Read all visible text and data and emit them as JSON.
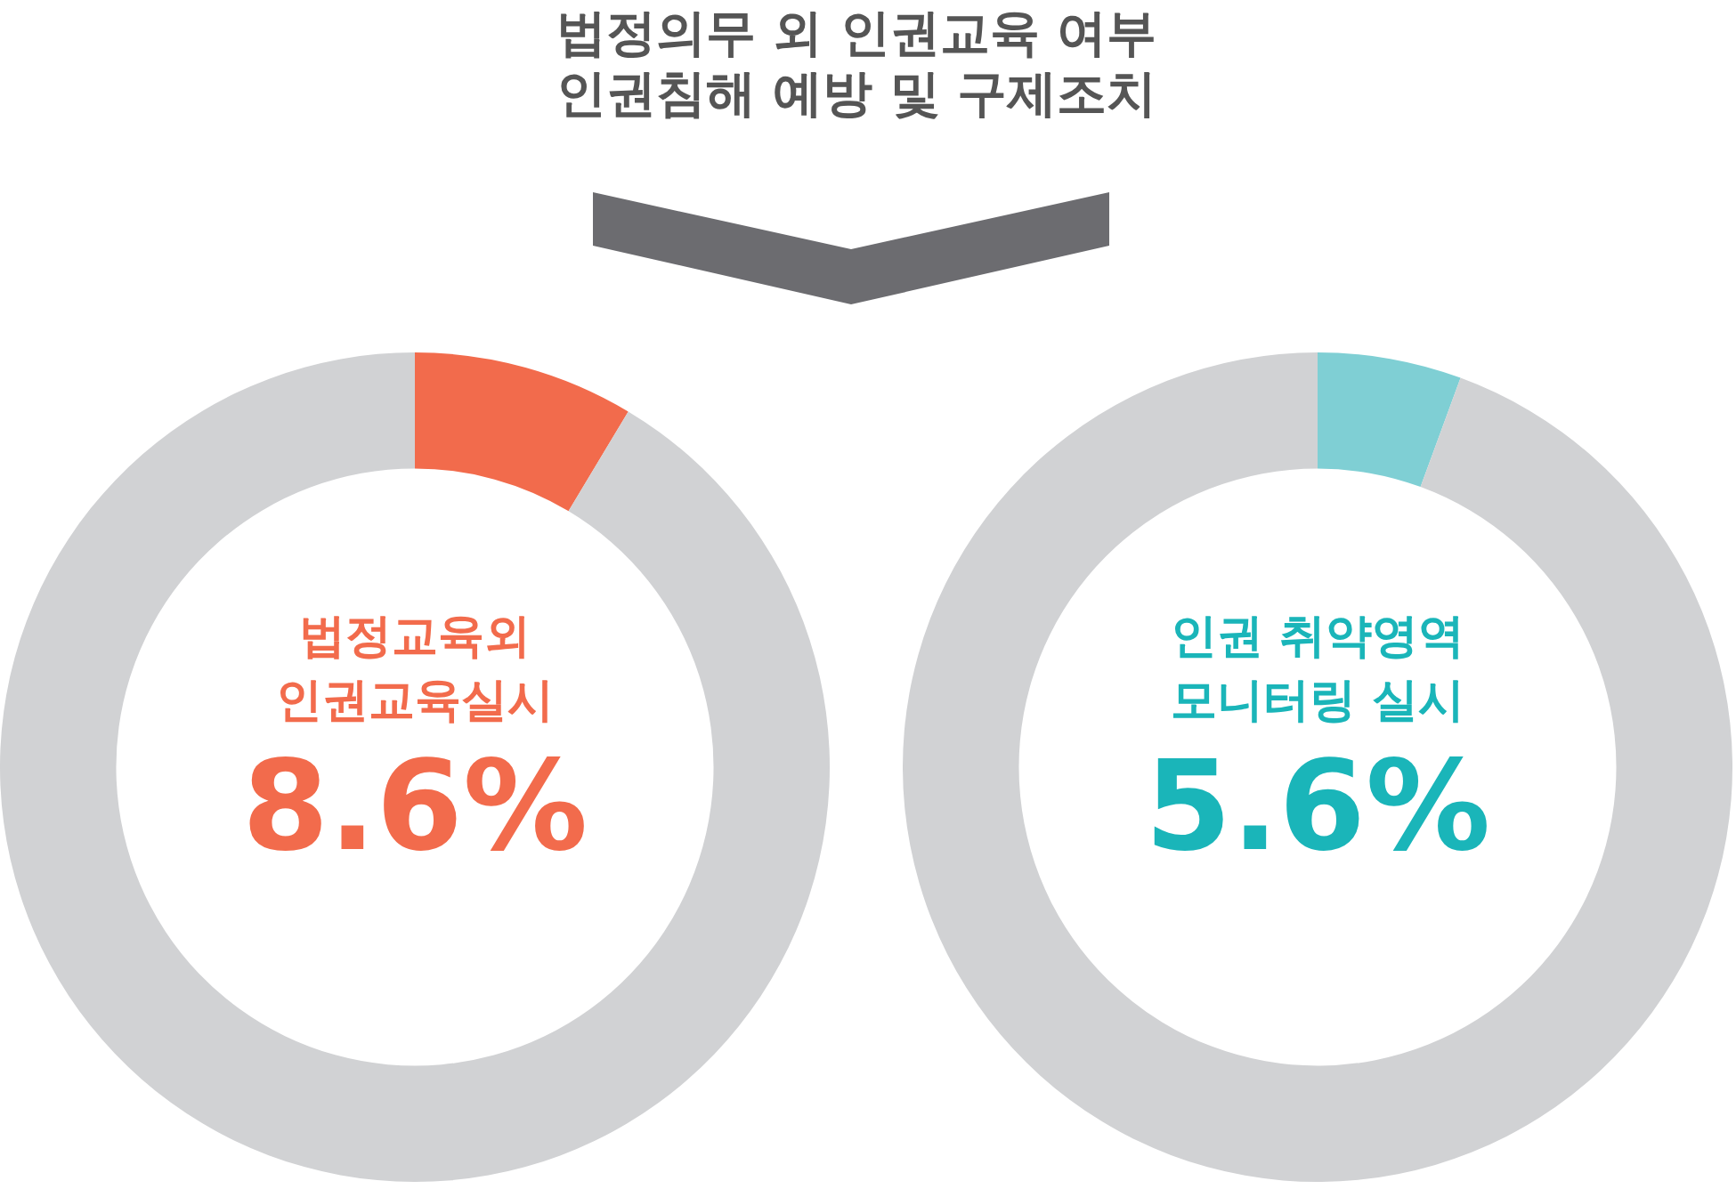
{
  "chart_data": [
    {
      "type": "other",
      "title": "법정의무 외 인권교육 여부\n인권침해 예방 및 구제조치"
    },
    {
      "type": "donut",
      "categories": [
        "법정교육외\n인권교육실시",
        null
      ],
      "values": [
        8.6,
        91.4
      ],
      "colors": [
        "#f26b4c",
        "#d1d2d4"
      ],
      "value_labels": [
        "8.6%",
        null
      ],
      "legend": false
    },
    {
      "type": "donut",
      "categories": [
        "인권 취약영역\n모니터링 실시",
        null
      ],
      "values": [
        5.6,
        94.4
      ],
      "colors": [
        "#7fcfd4",
        "#d1d2d4"
      ],
      "value_labels": [
        "5.6%",
        null
      ],
      "legend": false
    }
  ]
}
